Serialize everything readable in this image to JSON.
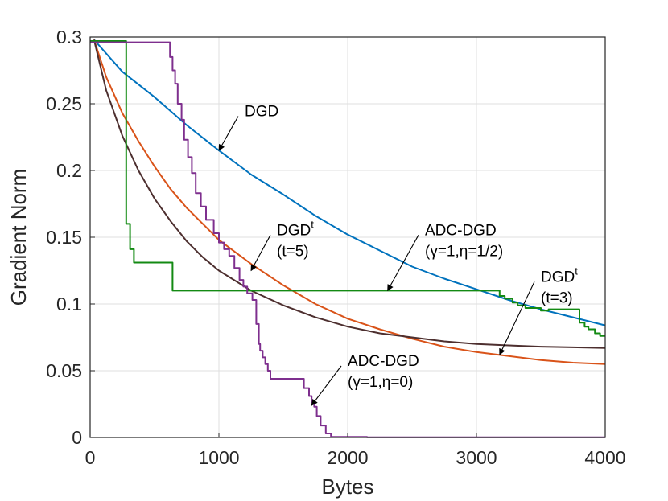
{
  "chart_data": {
    "type": "line",
    "xlabel": "Bytes",
    "ylabel": "Gradient Norm",
    "xlim": [
      0,
      4000
    ],
    "ylim": [
      0,
      0.3
    ],
    "grid": true,
    "xticks": [
      "0",
      "1000",
      "2000",
      "3000",
      "4000"
    ],
    "yticks": [
      "0",
      "0.05",
      "0.1",
      "0.15",
      "0.2",
      "0.25",
      "0.3"
    ],
    "xtick_values": [
      0,
      1000,
      2000,
      3000,
      4000
    ],
    "ytick_values": [
      0,
      0.05,
      0.1,
      0.15,
      0.2,
      0.25,
      0.3
    ],
    "series": [
      {
        "name": "DGD",
        "color": "#0072BD",
        "x": [
          30,
          250,
          500,
          750,
          1000,
          1250,
          1500,
          1750,
          2000,
          2250,
          2500,
          2750,
          3000,
          3250,
          3500,
          3750,
          4000
        ],
        "y": [
          0.298,
          0.274,
          0.255,
          0.234,
          0.215,
          0.197,
          0.182,
          0.166,
          0.152,
          0.14,
          0.128,
          0.119,
          0.111,
          0.103,
          0.096,
          0.09,
          0.084
        ]
      },
      {
        "name": "DGD^t (t=3)",
        "color": "#D95319",
        "x": [
          30,
          125,
          250,
          375,
          500,
          625,
          750,
          875,
          1000,
          1125,
          1250,
          1500,
          1750,
          2000,
          2250,
          2500,
          2750,
          3000,
          3250,
          3500,
          3750,
          4000
        ],
        "y": [
          0.298,
          0.27,
          0.243,
          0.222,
          0.203,
          0.186,
          0.172,
          0.16,
          0.148,
          0.139,
          0.13,
          0.114,
          0.1,
          0.089,
          0.081,
          0.074,
          0.068,
          0.064,
          0.061,
          0.058,
          0.056,
          0.055
        ]
      },
      {
        "name": "DGD^t (t=5)",
        "color": "#4D2F2F",
        "x": [
          30,
          125,
          250,
          375,
          500,
          625,
          750,
          875,
          1000,
          1250,
          1500,
          1750,
          2000,
          2250,
          2500,
          2750,
          3000,
          3250,
          3500,
          3750,
          4000
        ],
        "y": [
          0.298,
          0.26,
          0.226,
          0.2,
          0.179,
          0.162,
          0.147,
          0.135,
          0.125,
          0.11,
          0.099,
          0.09,
          0.083,
          0.078,
          0.075,
          0.072,
          0.07,
          0.069,
          0.068,
          0.0675,
          0.067
        ]
      },
      {
        "name": "ADC-DGD (γ=1,η=1/2)",
        "color": "#138A13",
        "x": [
          0,
          280,
          280,
          310,
          310,
          340,
          340,
          640,
          640,
          3180,
          3180,
          3220,
          3220,
          3280,
          3280,
          3320,
          3320,
          3380,
          3380,
          3500,
          3500,
          3560,
          3560,
          3800,
          3800,
          3840,
          3840,
          3870,
          3870,
          3920,
          3920,
          3960,
          3960,
          4000
        ],
        "y": [
          0.297,
          0.297,
          0.16,
          0.16,
          0.141,
          0.141,
          0.131,
          0.131,
          0.11,
          0.11,
          0.106,
          0.106,
          0.104,
          0.104,
          0.101,
          0.101,
          0.099,
          0.099,
          0.097,
          0.097,
          0.095,
          0.095,
          0.096,
          0.096,
          0.086,
          0.086,
          0.083,
          0.083,
          0.081,
          0.081,
          0.078,
          0.078,
          0.076,
          0.076
        ]
      },
      {
        "name": "ADC-DGD (γ=1,η=0)",
        "color": "#7E2F8E",
        "x": [
          0,
          620,
          620,
          640,
          640,
          660,
          660,
          680,
          680,
          710,
          710,
          730,
          730,
          760,
          760,
          790,
          790,
          820,
          820,
          860,
          860,
          900,
          900,
          960,
          960,
          1000,
          1000,
          1040,
          1040,
          1080,
          1080,
          1120,
          1120,
          1160,
          1160,
          1190,
          1190,
          1220,
          1220,
          1260,
          1260,
          1290,
          1290,
          1310,
          1310,
          1320,
          1320,
          1340,
          1340,
          1360,
          1360,
          1380,
          1380,
          1400,
          1400,
          1660,
          1660,
          1700,
          1700,
          1720,
          1720,
          1740,
          1740,
          1760,
          1760,
          1790,
          1790,
          1830,
          1830,
          1870,
          1870,
          2150,
          2150,
          4000
        ],
        "y": [
          0.296,
          0.296,
          0.285,
          0.285,
          0.275,
          0.275,
          0.265,
          0.265,
          0.25,
          0.25,
          0.238,
          0.238,
          0.223,
          0.223,
          0.21,
          0.21,
          0.198,
          0.198,
          0.183,
          0.183,
          0.173,
          0.173,
          0.163,
          0.163,
          0.153,
          0.153,
          0.146,
          0.146,
          0.141,
          0.141,
          0.136,
          0.136,
          0.127,
          0.127,
          0.118,
          0.118,
          0.113,
          0.113,
          0.108,
          0.108,
          0.103,
          0.103,
          0.085,
          0.085,
          0.07,
          0.07,
          0.065,
          0.065,
          0.06,
          0.06,
          0.055,
          0.055,
          0.05,
          0.05,
          0.044,
          0.044,
          0.037,
          0.037,
          0.031,
          0.031,
          0.026,
          0.026,
          0.023,
          0.023,
          0.016,
          0.016,
          0.009,
          0.009,
          0.003,
          0.003,
          0.0005,
          0.0005,
          0.0002,
          0.0002
        ]
      }
    ],
    "annotations": [
      {
        "id": "dgd",
        "lines": [
          "DGD"
        ],
        "sup": "",
        "point": [
          1000,
          0.215
        ],
        "text_at": [
          1200,
          0.237
        ]
      },
      {
        "id": "dgdt5",
        "lines": [
          "DGD",
          "(t=5)"
        ],
        "sup": "t",
        "point": [
          1250,
          0.125
        ],
        "text_at": [
          1450,
          0.148
        ]
      },
      {
        "id": "adc_half",
        "lines": [
          "ADC-DGD",
          "(γ=1,η=1/2)"
        ],
        "sup": "",
        "point": [
          2310,
          0.11
        ],
        "text_at": [
          2600,
          0.148
        ]
      },
      {
        "id": "dgdt3",
        "lines": [
          "DGD",
          "(t=3)"
        ],
        "sup": "t",
        "point": [
          3180,
          0.062
        ],
        "text_at": [
          3500,
          0.113
        ]
      },
      {
        "id": "adc_zero",
        "lines": [
          "ADC-DGD",
          "(γ=1,η=0)"
        ],
        "sup": "",
        "point": [
          1720,
          0.024
        ],
        "text_at": [
          2000,
          0.05
        ]
      }
    ]
  }
}
